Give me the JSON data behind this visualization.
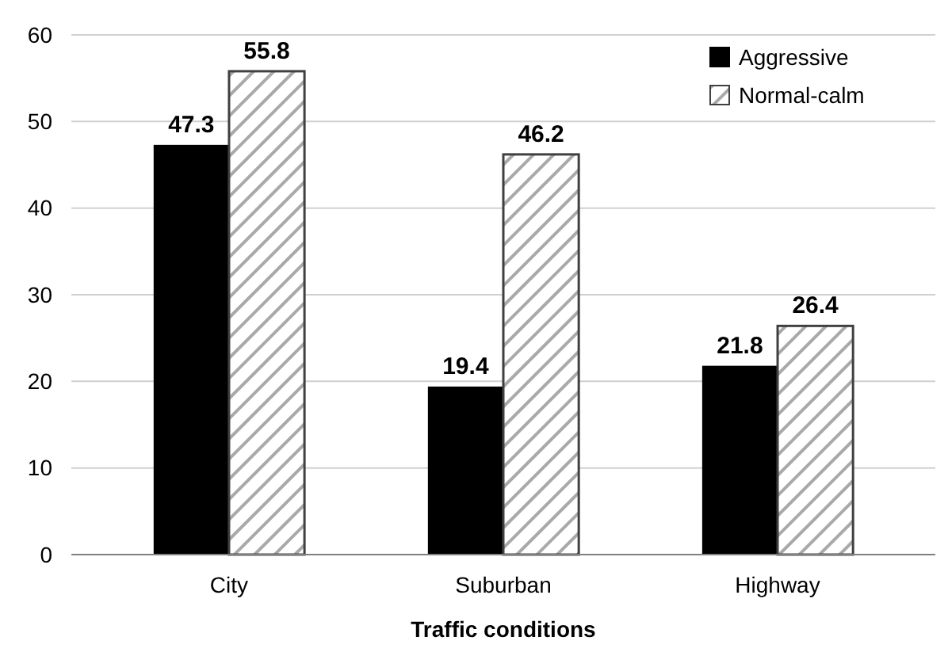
{
  "chart_data": {
    "type": "bar",
    "xlabel": "Traffic conditions",
    "categories": [
      "City",
      "Suburban",
      "Highway"
    ],
    "series": [
      {
        "name": "Aggressive",
        "color": "#000000",
        "values": [
          47.3,
          19.4,
          21.8
        ]
      },
      {
        "name": "Normal-calm",
        "color": "#404040",
        "values": [
          55.8,
          46.2,
          26.4
        ]
      }
    ],
    "ylim": [
      0,
      60
    ],
    "yticks": [
      0,
      10,
      20,
      30,
      40,
      50,
      60
    ],
    "grid": "y",
    "legend": "top right",
    "data_labels": true
  }
}
